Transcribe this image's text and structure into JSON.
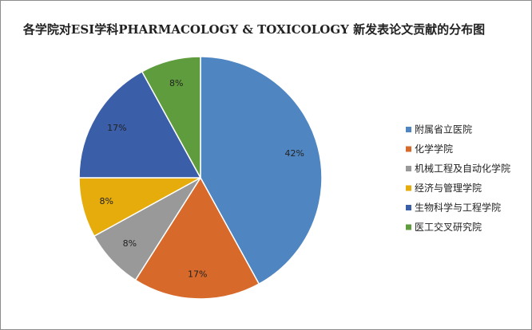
{
  "chart_data": {
    "type": "pie",
    "title": "各学院对ESI学科PHARMACOLOGY & TOXICOLOGY  新发表论文贡献的分布图",
    "categories": [
      "附属省立医院",
      "化学学院",
      "机械工程及自动化学院",
      "经济与管理学院",
      "生物科学与工程学院",
      "医工交叉研究院"
    ],
    "values": [
      42,
      17,
      8,
      8,
      17,
      8
    ],
    "value_labels": [
      "42%",
      "17%",
      "8%",
      "8%",
      "17%",
      "8%"
    ],
    "colors": [
      "#4f86c2",
      "#d7692a",
      "#999999",
      "#e5ac0b",
      "#3b5ea9",
      "#5f9c3d"
    ],
    "legend": "right"
  }
}
